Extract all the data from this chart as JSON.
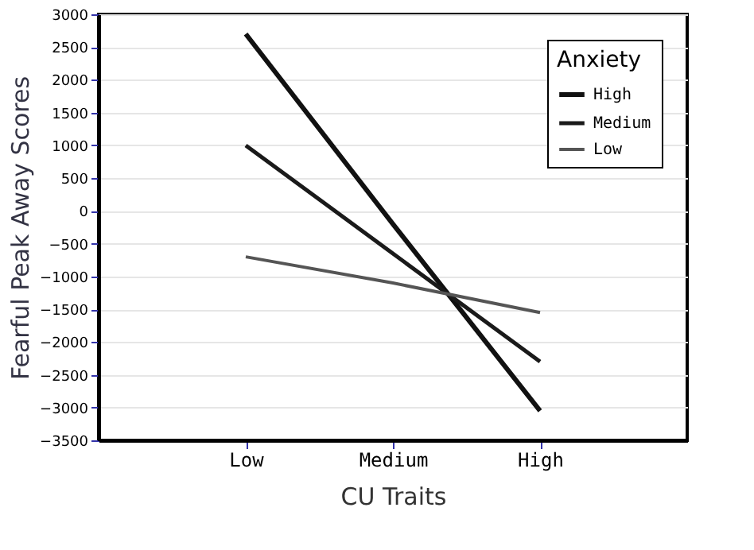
{
  "chart_data": {
    "type": "line",
    "xlabel": "CU Traits",
    "ylabel": "Fearful Peak Away Scores",
    "categories": [
      "Low",
      "Medium",
      "High"
    ],
    "series": [
      {
        "name": "High",
        "color": "#111111",
        "values": [
          2700,
          -200,
          -3050
        ]
      },
      {
        "name": "Medium",
        "color": "#1a1a1a",
        "values": [
          1000,
          -650,
          -2300
        ]
      },
      {
        "name": "Low",
        "color": "#555555",
        "values": [
          -700,
          -1100,
          -1550
        ]
      }
    ],
    "legend_title": "Anxiety",
    "legend": "top right",
    "ylim": [
      -3500,
      3000
    ],
    "yticks": [
      -3500,
      -3000,
      -2500,
      -2000,
      -1500,
      -1000,
      -500,
      0,
      500,
      1000,
      1500,
      2000,
      2500,
      3000
    ],
    "grid": "y",
    "marker": "none",
    "line_style": "solid"
  }
}
